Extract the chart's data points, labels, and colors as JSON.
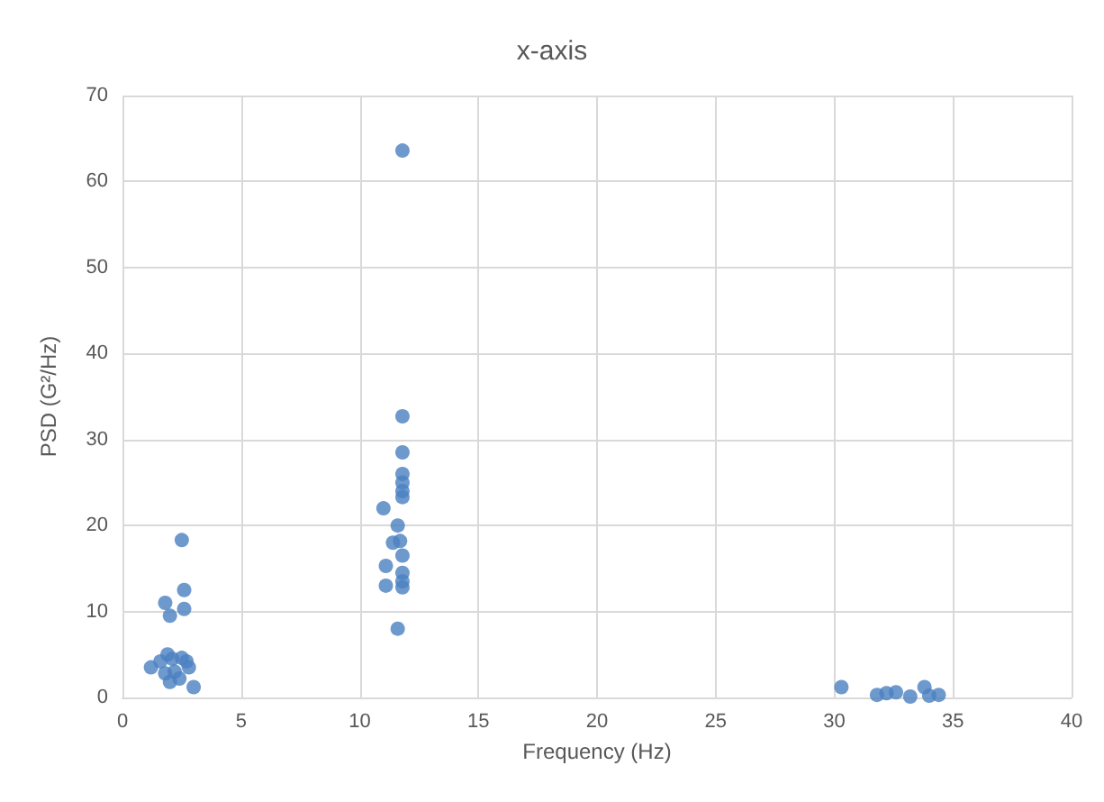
{
  "chart_data": {
    "type": "scatter",
    "title": "x-axis",
    "xlabel": "Frequency (Hz)",
    "ylabel": "PSD (G²/Hz)",
    "x": [
      2.5,
      2.6,
      1.8,
      2.6,
      2.0,
      1.2,
      1.6,
      1.9,
      2.1,
      2.5,
      2.7,
      2.8,
      1.8,
      2.2,
      2.4,
      2.0,
      3.0,
      11.8,
      11.8,
      11.8,
      11.8,
      11.8,
      11.8,
      11.8,
      11.0,
      11.6,
      11.4,
      11.7,
      11.8,
      11.1,
      11.8,
      11.8,
      11.1,
      11.8,
      11.6,
      30.3,
      31.8,
      32.2,
      32.6,
      33.8,
      34.0,
      34.4,
      33.2
    ],
    "values": [
      18.3,
      12.5,
      11.0,
      10.3,
      9.5,
      3.5,
      4.2,
      5.0,
      4.5,
      4.6,
      4.2,
      3.5,
      2.8,
      3.0,
      2.2,
      1.8,
      1.2,
      63.6,
      32.7,
      28.5,
      26.0,
      25.0,
      24.0,
      23.3,
      22.0,
      20.0,
      18.0,
      18.2,
      16.5,
      15.3,
      14.5,
      13.5,
      13.0,
      12.8,
      8.0,
      1.2,
      0.3,
      0.5,
      0.6,
      1.2,
      0.2,
      0.3,
      0.1
    ],
    "color": "#4a7fc0",
    "marker": "circle",
    "grid": true,
    "xlim": [
      0,
      40
    ],
    "xticks": [
      0,
      5,
      10,
      15,
      20,
      25,
      30,
      35,
      40
    ],
    "ylim": [
      0,
      70
    ],
    "yticks": [
      0,
      10,
      20,
      30,
      40,
      50,
      60,
      70
    ]
  }
}
